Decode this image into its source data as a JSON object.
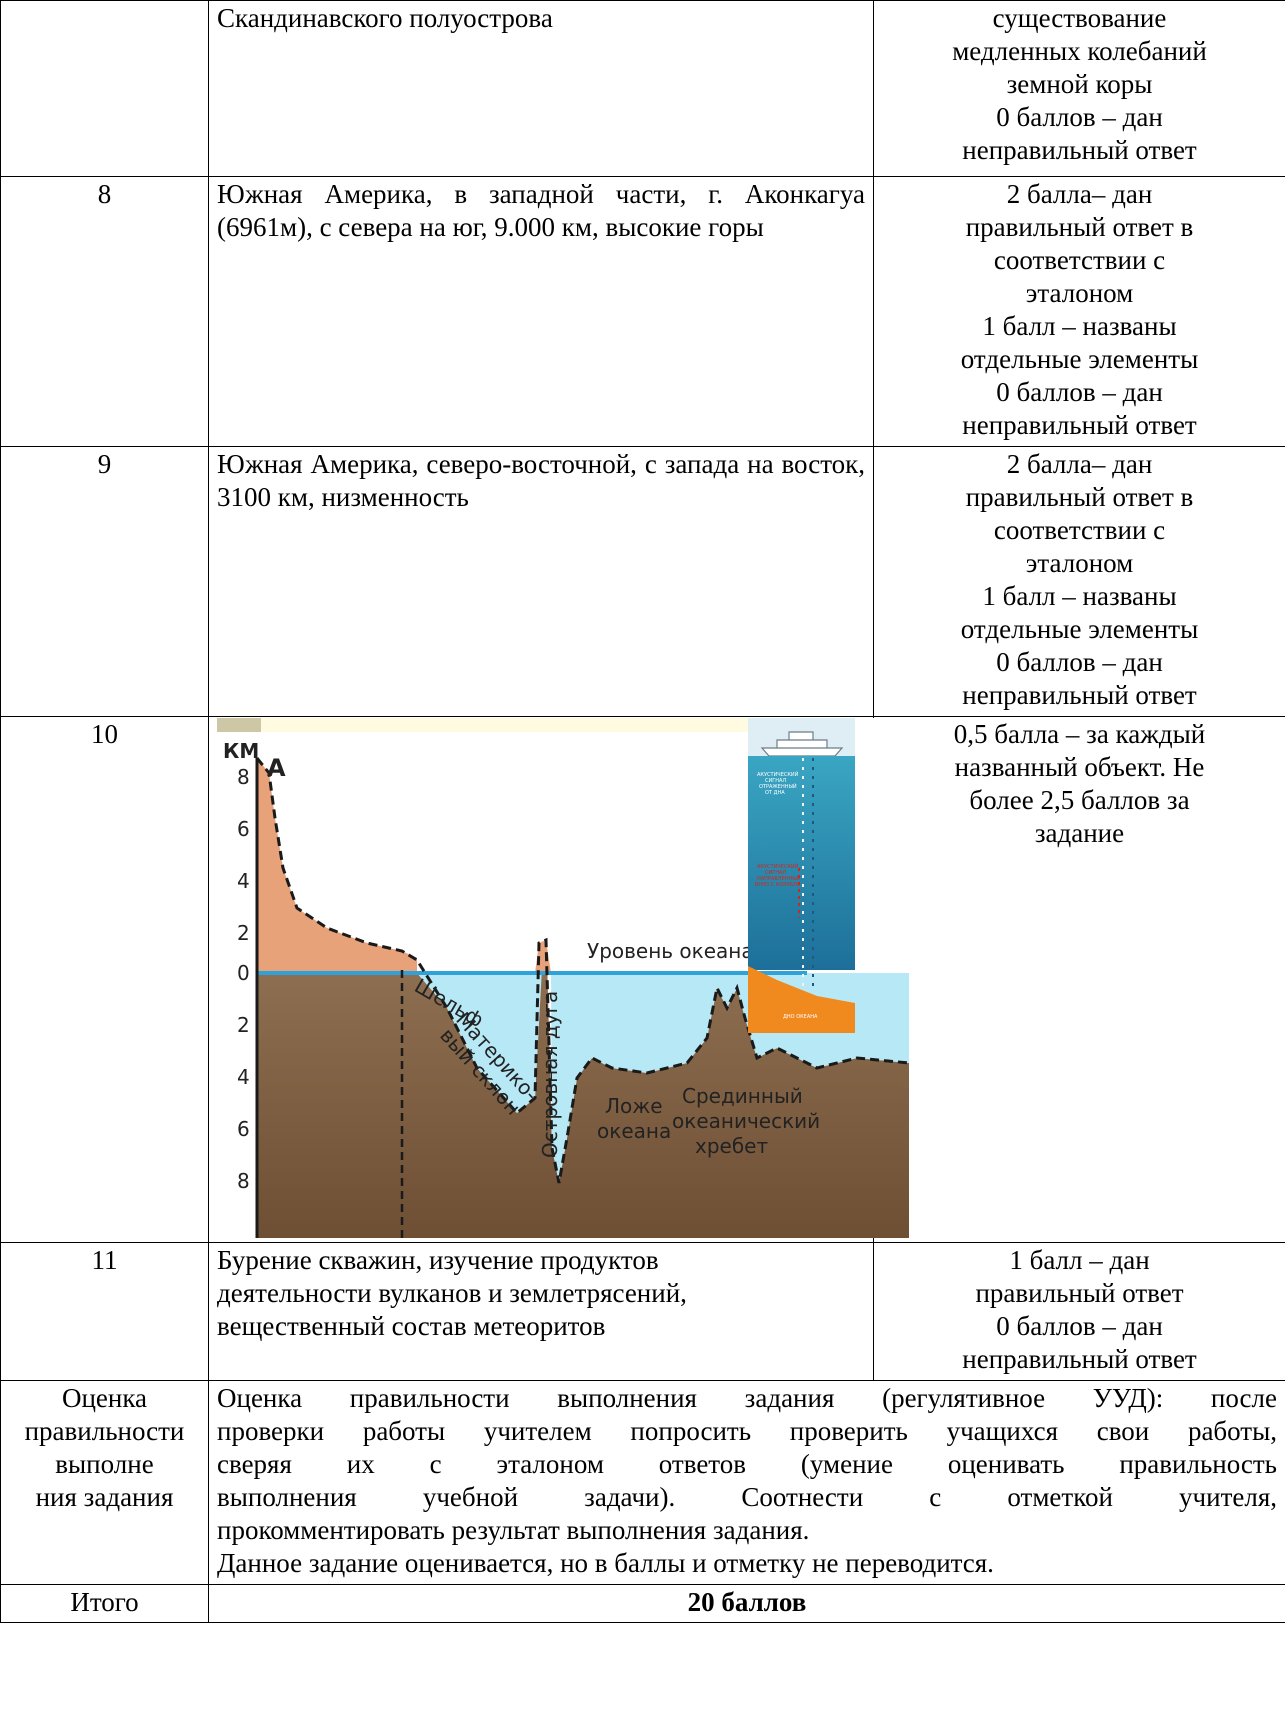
{
  "rows": {
    "r7": {
      "answer": "Скандинавского полуострова",
      "score_lines": [
        "существование",
        "медленных колебаний",
        "земной коры",
        "0 баллов – дан",
        "неправильный ответ"
      ]
    },
    "r8": {
      "number": "8",
      "answer": "Южная Америка, в западной части, г. Аконкагуа (6961м), с севера на юг, 9.000 км, высокие горы",
      "score_lines": [
        "2 балла– дан",
        "правильный ответ в",
        "соответствии с",
        "эталоном",
        "1 балл – названы",
        "отдельные элементы",
        "0 баллов – дан",
        "неправильный ответ"
      ]
    },
    "r9": {
      "number": "9",
      "answer": "Южная Америка, северо-восточной, с запада на восток, 3100 км, низменность",
      "score_lines": [
        "2 балла– дан",
        "правильный ответ в",
        "соответствии с",
        "эталоном",
        "1 балл – названы",
        "отдельные элементы",
        "0 баллов – дан",
        "неправильный ответ"
      ]
    },
    "r10": {
      "number": "10",
      "score_lines": [
        "0,5 балла – за каждый",
        "названный объект. Не",
        "более 2,5 баллов за",
        "задание"
      ]
    },
    "r11": {
      "number": "11",
      "answer_lines": [
        "Бурение скважин, изучение продуктов",
        "деятельности вулканов и землетрясений,",
        "вещественный состав метеоритов"
      ],
      "score_lines": [
        "1 балл – дан",
        "правильный ответ",
        "0 баллов – дан",
        "неправильный ответ"
      ]
    },
    "eval": {
      "label_lines": [
        "Оценка",
        "правильности",
        "выполне",
        "ния задания"
      ],
      "text_lines": [
        "Оценка правильности выполнения задания (регулятивное УУД): после",
        "проверки работы учителем попросить проверить учащихся свои работы,",
        "сверяя их с эталоном ответов (умение оценивать правильность",
        "выполнения учебной задачи). Соотнести с отметкой учителя,",
        "прокомментировать результат выполнения задания.",
        "Данное задание оценивается, но в баллы и отметку не переводится."
      ]
    },
    "total": {
      "label": "Итого",
      "value": "20 баллов"
    }
  },
  "diagram": {
    "unit": "КМ",
    "point_label": "А",
    "y_ticks_above": [
      "8",
      "6",
      "4",
      "2",
      "0"
    ],
    "y_ticks_below": [
      "2",
      "4",
      "6",
      "8"
    ],
    "ocean_level": "Уровень океана",
    "shelf": "Шельф",
    "slope": [
      "Материко-",
      "вый склон"
    ],
    "island_arc": "Островная дуга",
    "ocean_floor": [
      "Ложе",
      "океана"
    ],
    "ridge": [
      "Срединный",
      "океанический",
      "хребет"
    ],
    "inset_signal_1": [
      "АКУСТИЧЕСКИЙ",
      "СИГНАЛ",
      "ОТРАЖЕННЫЙ",
      "ОТ ДНА"
    ],
    "inset_signal_2": [
      "АКУСТИЧЕСКИЙ",
      "СИГНАЛ",
      "НАПРАВЛЕННЫЙ",
      "ВНИЗ С КОРАБЛЯ"
    ],
    "inset_bottom": "ДНО ОКЕАНА",
    "colors": {
      "land": "#e8a27a",
      "ocean": "#b7e8f6",
      "earth": "#8a6a4c",
      "level_line": "#2fa3d9",
      "inset_water": "#2c8fb0",
      "inset_bottom": "#f0891e"
    }
  }
}
